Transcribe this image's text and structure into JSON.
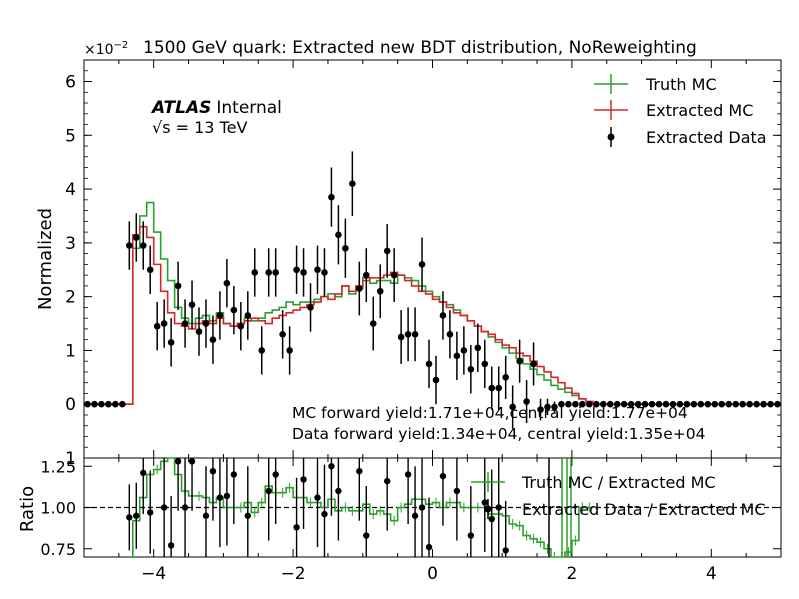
{
  "chart_data": [
    {
      "type": "histogram",
      "title": "1500 GeV quark: Extracted new BDT distribution, NoReweighting",
      "exponent_label": "×10",
      "exponent_power": "−2",
      "ylabel": "Normalized",
      "xlim": [
        -5,
        5
      ],
      "ylim": [
        -1,
        6.4
      ],
      "yticks": [
        {
          "value": 6,
          "label": "6"
        },
        {
          "value": 5,
          "label": "5"
        },
        {
          "value": 4,
          "label": "4"
        },
        {
          "value": 3,
          "label": "3"
        },
        {
          "value": 2,
          "label": "2"
        },
        {
          "value": 1,
          "label": "1"
        },
        {
          "value": 0,
          "label": "0"
        },
        {
          "value": -1,
          "label": "1"
        }
      ],
      "atlas": {
        "brand": "ATLAS",
        "status": "Internal",
        "sqrt_s": "√s =  13 TeV"
      },
      "annotations": [
        "MC forward yield:1.71e+04,central yield:1.77e+04",
        "Data forward yield:1.34e+04, central yield:1.35e+04"
      ],
      "legend": {
        "placement": "top-right",
        "entries": [
          {
            "label": "Truth MC",
            "color": "#2ca02c",
            "style": "errorbar-line"
          },
          {
            "label": "Extracted MC",
            "color": "#d62728",
            "style": "errorbar-line"
          },
          {
            "label": "Extracted Data",
            "color": "#000000",
            "style": "point"
          }
        ]
      },
      "bin_width": 0.1,
      "bin_start": -4.3,
      "series": [
        {
          "name": "Truth MC",
          "color": "#2ca02c",
          "values": [
            2.9,
            3.5,
            3.75,
            3.2,
            2.7,
            2.3,
            1.8,
            1.6,
            1.5,
            1.6,
            1.65,
            1.55,
            1.7,
            1.5,
            1.45,
            1.5,
            1.6,
            1.55,
            1.6,
            1.7,
            1.75,
            1.8,
            1.9,
            1.85,
            1.9,
            1.9,
            1.95,
            2.0,
            2.05,
            2.0,
            2.2,
            2.05,
            2.15,
            2.35,
            2.25,
            2.3,
            2.3,
            2.25,
            2.4,
            2.35,
            2.3,
            2.2,
            2.1,
            2.0,
            1.9,
            1.85,
            1.75,
            1.65,
            1.55,
            1.45,
            1.35,
            1.25,
            1.15,
            1.05,
            0.95,
            0.85,
            0.75,
            0.65,
            0.55,
            0.45,
            0.35,
            0.28,
            0.22,
            0.16,
            0.1,
            0.05
          ]
        },
        {
          "name": "Extracted MC",
          "color": "#d62728",
          "values": [
            3.15,
            3.3,
            3.1,
            2.6,
            2.1,
            1.7,
            1.5,
            1.45,
            1.4,
            1.5,
            1.55,
            1.5,
            1.6,
            1.5,
            1.45,
            1.5,
            1.55,
            1.6,
            1.55,
            1.5,
            1.6,
            1.65,
            1.7,
            1.75,
            1.8,
            1.85,
            1.9,
            2.0,
            1.95,
            2.05,
            2.2,
            2.1,
            2.2,
            2.3,
            2.35,
            2.35,
            2.4,
            2.45,
            2.4,
            2.3,
            2.2,
            2.1,
            2.05,
            1.95,
            1.9,
            1.8,
            1.7,
            1.65,
            1.55,
            1.45,
            1.35,
            1.3,
            1.2,
            1.1,
            1.05,
            0.95,
            0.9,
            0.8,
            0.7,
            0.6,
            0.5,
            0.4,
            0.3,
            0.2,
            0.1,
            0.05
          ]
        }
      ],
      "points": [
        {
          "x": -4.95,
          "y": 0,
          "err": 0.03
        },
        {
          "x": -4.85,
          "y": 0,
          "err": 0.03
        },
        {
          "x": -4.75,
          "y": 0,
          "err": 0.03
        },
        {
          "x": -4.65,
          "y": 0,
          "err": 0.03
        },
        {
          "x": -4.55,
          "y": 0,
          "err": 0.03
        },
        {
          "x": -4.45,
          "y": 0,
          "err": 0.03
        },
        {
          "x": -4.35,
          "y": 2.95,
          "err": 0.45
        },
        {
          "x": -4.25,
          "y": 3.1,
          "err": 0.45
        },
        {
          "x": -4.15,
          "y": 2.95,
          "err": 0.45
        },
        {
          "x": -4.05,
          "y": 2.5,
          "err": 0.45
        },
        {
          "x": -3.95,
          "y": 1.45,
          "err": 0.45
        },
        {
          "x": -3.85,
          "y": 1.5,
          "err": 0.45
        },
        {
          "x": -3.75,
          "y": 1.15,
          "err": 0.45
        },
        {
          "x": -3.65,
          "y": 2.2,
          "err": 0.45
        },
        {
          "x": -3.55,
          "y": 1.5,
          "err": 0.45
        },
        {
          "x": -3.45,
          "y": 1.85,
          "err": 0.45
        },
        {
          "x": -3.35,
          "y": 1.35,
          "err": 0.45
        },
        {
          "x": -3.25,
          "y": 1.5,
          "err": 0.45
        },
        {
          "x": -3.15,
          "y": 1.2,
          "err": 0.45
        },
        {
          "x": -3.05,
          "y": 1.65,
          "err": 0.45
        },
        {
          "x": -2.95,
          "y": 2.25,
          "err": 0.45
        },
        {
          "x": -2.85,
          "y": 1.75,
          "err": 0.45
        },
        {
          "x": -2.75,
          "y": 1.45,
          "err": 0.45
        },
        {
          "x": -2.65,
          "y": 1.65,
          "err": 0.45
        },
        {
          "x": -2.55,
          "y": 2.45,
          "err": 0.45
        },
        {
          "x": -2.45,
          "y": 1.0,
          "err": 0.45
        },
        {
          "x": -2.35,
          "y": 2.45,
          "err": 0.45
        },
        {
          "x": -2.25,
          "y": 2.45,
          "err": 0.45
        },
        {
          "x": -2.15,
          "y": 1.3,
          "err": 0.45
        },
        {
          "x": -2.05,
          "y": 1.0,
          "err": 0.45
        },
        {
          "x": -1.95,
          "y": 2.5,
          "err": 0.45
        },
        {
          "x": -1.85,
          "y": 2.45,
          "err": 0.45
        },
        {
          "x": -1.75,
          "y": 1.8,
          "err": 0.45
        },
        {
          "x": -1.65,
          "y": 2.5,
          "err": 0.45
        },
        {
          "x": -1.55,
          "y": 2.45,
          "err": 0.45
        },
        {
          "x": -1.45,
          "y": 3.85,
          "err": 0.55
        },
        {
          "x": -1.35,
          "y": 3.15,
          "err": 0.55
        },
        {
          "x": -1.25,
          "y": 2.9,
          "err": 0.55
        },
        {
          "x": -1.15,
          "y": 4.1,
          "err": 0.6
        },
        {
          "x": -1.05,
          "y": 2.15,
          "err": 0.5
        },
        {
          "x": -0.95,
          "y": 2.4,
          "err": 0.5
        },
        {
          "x": -0.85,
          "y": 1.5,
          "err": 0.5
        },
        {
          "x": -0.75,
          "y": 2.1,
          "err": 0.5
        },
        {
          "x": -0.65,
          "y": 2.85,
          "err": 0.5
        },
        {
          "x": -0.55,
          "y": 2.4,
          "err": 0.5
        },
        {
          "x": -0.45,
          "y": 1.25,
          "err": 0.5
        },
        {
          "x": -0.35,
          "y": 1.3,
          "err": 0.5
        },
        {
          "x": -0.25,
          "y": 1.3,
          "err": 0.5
        },
        {
          "x": -0.15,
          "y": 2.6,
          "err": 0.5
        },
        {
          "x": -0.05,
          "y": 0.75,
          "err": 0.45
        },
        {
          "x": 0.05,
          "y": 0.45,
          "err": 0.45
        },
        {
          "x": 0.15,
          "y": 1.65,
          "err": 0.45
        },
        {
          "x": 0.25,
          "y": 1.3,
          "err": 0.45
        },
        {
          "x": 0.35,
          "y": 0.9,
          "err": 0.45
        },
        {
          "x": 0.45,
          "y": 1.0,
          "err": 0.45
        },
        {
          "x": 0.55,
          "y": 0.65,
          "err": 0.45
        },
        {
          "x": 0.65,
          "y": 1.05,
          "err": 0.45
        },
        {
          "x": 0.75,
          "y": 0.75,
          "err": 0.45
        },
        {
          "x": 0.85,
          "y": 0.3,
          "err": 0.4
        },
        {
          "x": 0.95,
          "y": 0.3,
          "err": 0.4
        },
        {
          "x": 1.05,
          "y": 0.5,
          "err": 0.4
        },
        {
          "x": 1.15,
          "y": -0.05,
          "err": 0.4
        },
        {
          "x": 1.25,
          "y": 0.8,
          "err": 0.4
        },
        {
          "x": 1.35,
          "y": 0.05,
          "err": 0.4
        },
        {
          "x": 1.45,
          "y": 0.75,
          "err": 0.4
        },
        {
          "x": 1.55,
          "y": -0.1,
          "err": 0.2
        },
        {
          "x": 1.65,
          "y": -0.05,
          "err": 0.15
        },
        {
          "x": 1.75,
          "y": -0.05,
          "err": 0.1
        },
        {
          "x": 1.85,
          "y": 0,
          "err": 0.05
        },
        {
          "x": 1.95,
          "y": 0,
          "err": 0.03
        },
        {
          "x": 2.05,
          "y": 0,
          "err": 0.03
        },
        {
          "x": 2.15,
          "y": 0,
          "err": 0.03
        },
        {
          "x": 2.25,
          "y": 0,
          "err": 0.03
        },
        {
          "x": 2.35,
          "y": 0,
          "err": 0.03
        },
        {
          "x": 2.45,
          "y": 0,
          "err": 0.03
        },
        {
          "x": 2.55,
          "y": 0,
          "err": 0.03
        },
        {
          "x": 2.65,
          "y": 0,
          "err": 0.03
        },
        {
          "x": 2.75,
          "y": 0,
          "err": 0.03
        },
        {
          "x": 2.85,
          "y": 0,
          "err": 0.03
        },
        {
          "x": 2.95,
          "y": 0,
          "err": 0.03
        },
        {
          "x": 3.05,
          "y": 0,
          "err": 0.03
        },
        {
          "x": 3.15,
          "y": 0,
          "err": 0.03
        },
        {
          "x": 3.25,
          "y": 0,
          "err": 0.03
        },
        {
          "x": 3.35,
          "y": 0,
          "err": 0.03
        },
        {
          "x": 3.45,
          "y": 0,
          "err": 0.03
        },
        {
          "x": 3.55,
          "y": 0,
          "err": 0.03
        },
        {
          "x": 3.65,
          "y": 0,
          "err": 0.03
        },
        {
          "x": 3.75,
          "y": 0,
          "err": 0.03
        },
        {
          "x": 3.85,
          "y": 0,
          "err": 0.03
        },
        {
          "x": 3.95,
          "y": 0,
          "err": 0.03
        },
        {
          "x": 4.05,
          "y": 0,
          "err": 0.03
        },
        {
          "x": 4.15,
          "y": 0,
          "err": 0.03
        },
        {
          "x": 4.25,
          "y": 0,
          "err": 0.03
        },
        {
          "x": 4.35,
          "y": 0,
          "err": 0.03
        },
        {
          "x": 4.45,
          "y": 0,
          "err": 0.03
        },
        {
          "x": 4.55,
          "y": 0,
          "err": 0.03
        },
        {
          "x": 4.65,
          "y": 0,
          "err": 0.03
        },
        {
          "x": 4.75,
          "y": 0,
          "err": 0.03
        },
        {
          "x": 4.85,
          "y": 0,
          "err": 0.03
        },
        {
          "x": 4.95,
          "y": 0,
          "err": 0.03
        }
      ]
    },
    {
      "type": "ratio",
      "ylabel": "Ratio",
      "xlim": [
        -5,
        5
      ],
      "ylim": [
        0.7,
        1.3
      ],
      "reference_line": 1.0,
      "yticks": [
        {
          "value": 1.25,
          "label": "1.25"
        },
        {
          "value": 1.0,
          "label": "1.00"
        },
        {
          "value": 0.75,
          "label": "0.75"
        }
      ],
      "xticks": [
        {
          "value": -4,
          "label": "−4"
        },
        {
          "value": -2,
          "label": "−2"
        },
        {
          "value": 0,
          "label": "0"
        },
        {
          "value": 2,
          "label": "2"
        },
        {
          "value": 4,
          "label": "4"
        }
      ],
      "legend": {
        "placement": "top-right",
        "entries": [
          {
            "label": "Truth MC / Extracted MC",
            "color": "#2ca02c",
            "style": "errorbar-line"
          },
          {
            "label": "Extracted Data / Extracted MC",
            "color": "#000000",
            "style": "point"
          }
        ]
      },
      "bin_width": 0.1,
      "bin_start": -4.3,
      "series": [
        {
          "name": "Truth MC / Extracted MC",
          "color": "#2ca02c",
          "values": [
            0.92,
            1.06,
            1.2,
            1.23,
            1.28,
            1.35,
            1.2,
            1.1,
            1.07,
            1.07,
            1.06,
            1.03,
            1.06,
            1.0,
            1.0,
            1.0,
            1.03,
            0.97,
            1.03,
            1.13,
            1.09,
            1.09,
            1.12,
            1.06,
            1.06,
            1.03,
            1.03,
            1.0,
            1.05,
            0.98,
            1.0,
            0.98,
            0.98,
            1.02,
            0.96,
            0.98,
            0.96,
            0.92,
            1.0,
            1.02,
            1.05,
            1.05,
            1.02,
            1.03,
            1.0,
            1.03,
            1.03,
            1.0,
            1.0,
            1.0,
            1.0,
            0.96,
            0.96,
            0.95,
            0.9,
            0.89,
            0.83,
            0.81,
            0.79,
            0.75,
            0.7,
            0.7,
            0.73,
            0.8,
            1.0,
            1.0
          ]
        }
      ],
      "points": [
        {
          "x": -4.35,
          "y": 0.94,
          "err": 0.2
        },
        {
          "x": -4.25,
          "y": 0.95,
          "err": 0.2
        },
        {
          "x": -4.15,
          "y": 1.21,
          "err": 0.25
        },
        {
          "x": -4.05,
          "y": 0.97,
          "err": 0.25
        },
        {
          "x": -3.85,
          "y": 1.0,
          "err": 0.3
        },
        {
          "x": -3.75,
          "y": 0.77,
          "err": 0.3
        },
        {
          "x": -3.65,
          "y": 1.28,
          "err": 0.3
        },
        {
          "x": -3.55,
          "y": 1.0,
          "err": 0.3
        },
        {
          "x": -3.45,
          "y": 1.28,
          "err": 0.3
        },
        {
          "x": -3.25,
          "y": 0.95,
          "err": 0.3
        },
        {
          "x": -3.15,
          "y": 1.22,
          "err": 0.3
        },
        {
          "x": -3.05,
          "y": 1.06,
          "err": 0.3
        },
        {
          "x": -2.95,
          "y": 1.07,
          "err": 0.3
        },
        {
          "x": -2.85,
          "y": 1.2,
          "err": 0.3
        },
        {
          "x": -2.65,
          "y": 0.95,
          "err": 0.3
        },
        {
          "x": -2.35,
          "y": 1.1,
          "err": 0.3
        },
        {
          "x": -2.25,
          "y": 1.2,
          "err": 0.3
        },
        {
          "x": -1.95,
          "y": 0.88,
          "err": 0.3
        },
        {
          "x": -1.85,
          "y": 1.17,
          "err": 0.3
        },
        {
          "x": -1.65,
          "y": 1.06,
          "err": 0.3
        },
        {
          "x": -1.55,
          "y": 0.96,
          "err": 0.3
        },
        {
          "x": -1.45,
          "y": 1.25,
          "err": 0.3
        },
        {
          "x": -1.35,
          "y": 1.1,
          "err": 0.3
        },
        {
          "x": -1.05,
          "y": 1.22,
          "err": 0.3
        },
        {
          "x": -0.95,
          "y": 0.83,
          "err": 0.3
        },
        {
          "x": -0.65,
          "y": 1.16,
          "err": 0.3
        },
        {
          "x": -0.35,
          "y": 1.2,
          "err": 0.3
        },
        {
          "x": -0.25,
          "y": 0.95,
          "err": 0.3
        },
        {
          "x": -0.15,
          "y": 1.0,
          "err": 0.3
        },
        {
          "x": -0.05,
          "y": 0.76,
          "err": 0.3
        },
        {
          "x": 0.15,
          "y": 1.19,
          "err": 0.3
        },
        {
          "x": 0.35,
          "y": 1.1,
          "err": 0.3
        },
        {
          "x": 0.55,
          "y": 0.83,
          "err": 0.3
        },
        {
          "x": 0.75,
          "y": 1.03,
          "err": 0.3
        },
        {
          "x": 0.85,
          "y": 0.93,
          "err": 0.3
        },
        {
          "x": 0.95,
          "y": 1.0,
          "err": 0.3
        },
        {
          "x": 1.05,
          "y": 0.74,
          "err": 0.3
        }
      ]
    }
  ]
}
